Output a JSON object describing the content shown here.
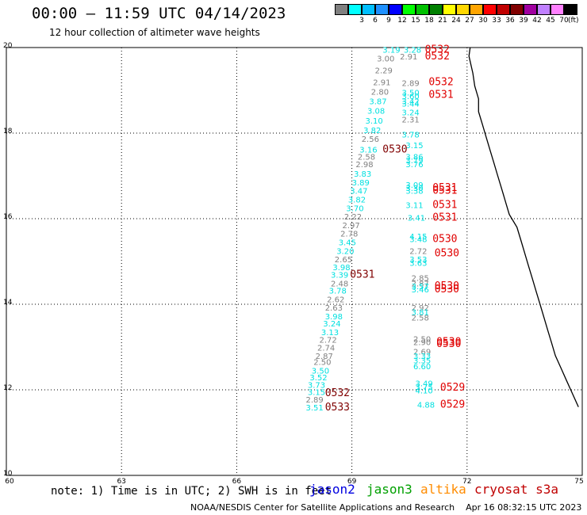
{
  "header": {
    "title": "00:00 – 11:59 UTC 04/14/2023",
    "subtitle": "12 hour collection of altimeter wave heights"
  },
  "color_scale": {
    "unit": "(ft)",
    "levels": [
      {
        "label": "",
        "color": "#808080"
      },
      {
        "label": "3",
        "color": "#00ffff"
      },
      {
        "label": "6",
        "color": "#00bfff"
      },
      {
        "label": "9",
        "color": "#1e90ff"
      },
      {
        "label": "12",
        "color": "#0000ff"
      },
      {
        "label": "15",
        "color": "#00ff00"
      },
      {
        "label": "18",
        "color": "#00c000"
      },
      {
        "label": "21",
        "color": "#008000"
      },
      {
        "label": "24",
        "color": "#ffff00"
      },
      {
        "label": "27",
        "color": "#ffd700"
      },
      {
        "label": "30",
        "color": "#ffa500"
      },
      {
        "label": "33",
        "color": "#ff0000"
      },
      {
        "label": "36",
        "color": "#c00000"
      },
      {
        "label": "39",
        "color": "#800000"
      },
      {
        "label": "42",
        "color": "#a000a0"
      },
      {
        "label": "45",
        "color": "#c080ff"
      },
      {
        "label": "70",
        "color": "#ff80ff"
      },
      {
        "label": "",
        "color": "#000000"
      }
    ]
  },
  "axes": {
    "lat_ticks": [
      "20",
      "18",
      "16",
      "14",
      "12",
      "10"
    ],
    "lon_ticks": [
      "60",
      "63",
      "66",
      "69",
      "72",
      "75"
    ]
  },
  "map_data": {
    "extent": {
      "lon": [
        60,
        75
      ],
      "lat": [
        10,
        20
      ]
    },
    "swh_readings": [
      {
        "lon": 69.8,
        "lat": 19.88,
        "text": "3.19",
        "color": "#00e0e0"
      },
      {
        "lon": 70.35,
        "lat": 19.88,
        "text": "3.28",
        "color": "#00e0e0"
      },
      {
        "lon": 69.65,
        "lat": 19.68,
        "text": "3.00",
        "color": "#808080"
      },
      {
        "lon": 70.25,
        "lat": 19.72,
        "text": "2.91",
        "color": "#808080"
      },
      {
        "lon": 69.6,
        "lat": 19.4,
        "text": "2.29",
        "color": "#808080"
      },
      {
        "lon": 69.55,
        "lat": 19.12,
        "text": "2.91",
        "color": "#808080"
      },
      {
        "lon": 70.3,
        "lat": 19.1,
        "text": "2.89",
        "color": "#808080"
      },
      {
        "lon": 69.5,
        "lat": 18.9,
        "text": "2.80",
        "color": "#808080"
      },
      {
        "lon": 70.3,
        "lat": 18.88,
        "text": "3.50",
        "color": "#00e0e0"
      },
      {
        "lon": 70.3,
        "lat": 18.8,
        "text": "3.60",
        "color": "#00e0e0"
      },
      {
        "lon": 69.45,
        "lat": 18.68,
        "text": "3.87",
        "color": "#00e0e0"
      },
      {
        "lon": 70.3,
        "lat": 18.68,
        "text": "3.42",
        "color": "#00e0e0"
      },
      {
        "lon": 70.3,
        "lat": 18.62,
        "text": "3.44",
        "color": "#00e0e0"
      },
      {
        "lon": 69.4,
        "lat": 18.45,
        "text": "3.08",
        "color": "#00e0e0"
      },
      {
        "lon": 70.3,
        "lat": 18.42,
        "text": "3.24",
        "color": "#00e0e0"
      },
      {
        "lon": 69.35,
        "lat": 18.22,
        "text": "3.10",
        "color": "#00e0e0"
      },
      {
        "lon": 70.3,
        "lat": 18.25,
        "text": "2.31",
        "color": "#808080"
      },
      {
        "lon": 69.3,
        "lat": 18.0,
        "text": "3.82",
        "color": "#00e0e0"
      },
      {
        "lon": 70.3,
        "lat": 17.9,
        "text": "3.78",
        "color": "#00e0e0"
      },
      {
        "lon": 69.25,
        "lat": 17.8,
        "text": "2.56",
        "color": "#808080"
      },
      {
        "lon": 70.4,
        "lat": 17.65,
        "text": "3.15",
        "color": "#00e0e0"
      },
      {
        "lon": 69.2,
        "lat": 17.55,
        "text": "3.16",
        "color": "#00e0e0"
      },
      {
        "lon": 69.15,
        "lat": 17.38,
        "text": "2.58",
        "color": "#808080"
      },
      {
        "lon": 70.4,
        "lat": 17.38,
        "text": "3.86",
        "color": "#00e0e0"
      },
      {
        "lon": 70.4,
        "lat": 17.3,
        "text": "3.79",
        "color": "#00e0e0"
      },
      {
        "lon": 69.1,
        "lat": 17.2,
        "text": "2.98",
        "color": "#808080"
      },
      {
        "lon": 70.4,
        "lat": 17.2,
        "text": "3.76",
        "color": "#00e0e0"
      },
      {
        "lon": 69.05,
        "lat": 16.98,
        "text": "3.83",
        "color": "#00e0e0"
      },
      {
        "lon": 69.0,
        "lat": 16.78,
        "text": "3.89",
        "color": "#00e0e0"
      },
      {
        "lon": 70.4,
        "lat": 16.72,
        "text": "3.09",
        "color": "#00e0e0"
      },
      {
        "lon": 70.4,
        "lat": 16.65,
        "text": "3.30",
        "color": "#00e0e0"
      },
      {
        "lon": 70.4,
        "lat": 16.58,
        "text": "3.38",
        "color": "#00e0e0"
      },
      {
        "lon": 68.95,
        "lat": 16.58,
        "text": "3.47",
        "color": "#00e0e0"
      },
      {
        "lon": 68.9,
        "lat": 16.38,
        "text": "3.82",
        "color": "#00e0e0"
      },
      {
        "lon": 70.4,
        "lat": 16.25,
        "text": "3.11",
        "color": "#00e0e0"
      },
      {
        "lon": 68.85,
        "lat": 16.18,
        "text": "3.70",
        "color": "#00e0e0"
      },
      {
        "lon": 68.8,
        "lat": 15.98,
        "text": "2.22",
        "color": "#808080"
      },
      {
        "lon": 70.45,
        "lat": 15.95,
        "text": "3.41",
        "color": "#00e0e0"
      },
      {
        "lon": 68.75,
        "lat": 15.78,
        "text": "2.97",
        "color": "#808080"
      },
      {
        "lon": 68.7,
        "lat": 15.58,
        "text": "2.78",
        "color": "#808080"
      },
      {
        "lon": 70.5,
        "lat": 15.52,
        "text": "4.15",
        "color": "#00e0e0"
      },
      {
        "lon": 70.5,
        "lat": 15.45,
        "text": "3.48",
        "color": "#00e0e0"
      },
      {
        "lon": 68.65,
        "lat": 15.38,
        "text": "3.45",
        "color": "#00e0e0"
      },
      {
        "lon": 68.6,
        "lat": 15.18,
        "text": "3.20",
        "color": "#00e0e0"
      },
      {
        "lon": 70.5,
        "lat": 15.18,
        "text": "2.72",
        "color": "#808080"
      },
      {
        "lon": 68.55,
        "lat": 14.98,
        "text": "2.65",
        "color": "#808080"
      },
      {
        "lon": 70.5,
        "lat": 14.98,
        "text": "3.53",
        "color": "#00e0e0"
      },
      {
        "lon": 70.5,
        "lat": 14.9,
        "text": "3.63",
        "color": "#00e0e0"
      },
      {
        "lon": 68.5,
        "lat": 14.8,
        "text": "3.98",
        "color": "#00e0e0"
      },
      {
        "lon": 68.45,
        "lat": 14.62,
        "text": "3.39",
        "color": "#00e0e0"
      },
      {
        "lon": 70.55,
        "lat": 14.55,
        "text": "2.85",
        "color": "#808080"
      },
      {
        "lon": 68.45,
        "lat": 14.42,
        "text": "2.48",
        "color": "#808080"
      },
      {
        "lon": 70.55,
        "lat": 14.42,
        "text": "2.87",
        "color": "#808080"
      },
      {
        "lon": 70.55,
        "lat": 14.35,
        "text": "3.57",
        "color": "#00e0e0"
      },
      {
        "lon": 70.55,
        "lat": 14.28,
        "text": "3.46",
        "color": "#00e0e0"
      },
      {
        "lon": 68.4,
        "lat": 14.25,
        "text": "3.78",
        "color": "#00e0e0"
      },
      {
        "lon": 68.35,
        "lat": 14.05,
        "text": "2.62",
        "color": "#808080"
      },
      {
        "lon": 68.3,
        "lat": 13.85,
        "text": "2.63",
        "color": "#808080"
      },
      {
        "lon": 70.55,
        "lat": 13.85,
        "text": "2.92",
        "color": "#808080"
      },
      {
        "lon": 70.55,
        "lat": 13.75,
        "text": "3.81",
        "color": "#00e0e0"
      },
      {
        "lon": 68.3,
        "lat": 13.65,
        "text": "3.98",
        "color": "#00e0e0"
      },
      {
        "lon": 70.55,
        "lat": 13.62,
        "text": "2.58",
        "color": "#808080"
      },
      {
        "lon": 68.25,
        "lat": 13.48,
        "text": "3.24",
        "color": "#00e0e0"
      },
      {
        "lon": 68.2,
        "lat": 13.28,
        "text": "3.13",
        "color": "#00e0e0"
      },
      {
        "lon": 70.6,
        "lat": 13.12,
        "text": "2.50",
        "color": "#808080"
      },
      {
        "lon": 70.6,
        "lat": 13.05,
        "text": "2.90",
        "color": "#808080"
      },
      {
        "lon": 68.15,
        "lat": 13.1,
        "text": "2.72",
        "color": "#808080"
      },
      {
        "lon": 68.1,
        "lat": 12.92,
        "text": "2.74",
        "color": "#808080"
      },
      {
        "lon": 70.6,
        "lat": 12.82,
        "text": "2.69",
        "color": "#808080"
      },
      {
        "lon": 68.05,
        "lat": 12.72,
        "text": "2.87",
        "color": "#808080"
      },
      {
        "lon": 70.6,
        "lat": 12.72,
        "text": "3.33",
        "color": "#00e0e0"
      },
      {
        "lon": 70.6,
        "lat": 12.62,
        "text": "3.35",
        "color": "#00e0e0"
      },
      {
        "lon": 68.0,
        "lat": 12.58,
        "text": "2.50",
        "color": "#808080"
      },
      {
        "lon": 70.6,
        "lat": 12.48,
        "text": "6.60",
        "color": "#00e0e0"
      },
      {
        "lon": 67.95,
        "lat": 12.38,
        "text": "3.50",
        "color": "#00e0e0"
      },
      {
        "lon": 67.9,
        "lat": 12.22,
        "text": "3.52",
        "color": "#00e0e0"
      },
      {
        "lon": 70.65,
        "lat": 12.08,
        "text": "3.49",
        "color": "#00e0e0"
      },
      {
        "lon": 70.65,
        "lat": 12.0,
        "text": "3.75",
        "color": "#00e0e0"
      },
      {
        "lon": 67.85,
        "lat": 12.05,
        "text": "3.73",
        "color": "#00e0e0"
      },
      {
        "lon": 70.65,
        "lat": 11.92,
        "text": "4.10",
        "color": "#00e0e0"
      },
      {
        "lon": 67.85,
        "lat": 11.88,
        "text": "3.15",
        "color": "#00e0e0"
      },
      {
        "lon": 67.8,
        "lat": 11.7,
        "text": "2.89",
        "color": "#808080"
      },
      {
        "lon": 70.7,
        "lat": 11.58,
        "text": "4.88",
        "color": "#00e0e0"
      },
      {
        "lon": 67.8,
        "lat": 11.52,
        "text": "3.51",
        "color": "#00e0e0"
      }
    ],
    "pass_times": [
      {
        "lon": 70.9,
        "lat": 19.88,
        "text": "0532",
        "color": "#e00000"
      },
      {
        "lon": 70.9,
        "lat": 19.72,
        "text": "0532",
        "color": "#e00000"
      },
      {
        "lon": 71.0,
        "lat": 19.12,
        "text": "0532",
        "color": "#e00000"
      },
      {
        "lon": 71.0,
        "lat": 18.82,
        "text": "0531",
        "color": "#e00000"
      },
      {
        "lon": 69.8,
        "lat": 17.55,
        "text": "0530",
        "color": "#800000"
      },
      {
        "lon": 71.1,
        "lat": 16.65,
        "text": "0531",
        "color": "#e00000"
      },
      {
        "lon": 71.1,
        "lat": 16.58,
        "text": "0531",
        "color": "#e00000"
      },
      {
        "lon": 71.1,
        "lat": 16.25,
        "text": "0531",
        "color": "#e00000"
      },
      {
        "lon": 71.1,
        "lat": 15.95,
        "text": "0531",
        "color": "#e00000"
      },
      {
        "lon": 71.1,
        "lat": 15.45,
        "text": "0530",
        "color": "#e00000"
      },
      {
        "lon": 71.15,
        "lat": 15.12,
        "text": "0530",
        "color": "#e00000"
      },
      {
        "lon": 68.95,
        "lat": 14.62,
        "text": "0531",
        "color": "#800000"
      },
      {
        "lon": 71.15,
        "lat": 14.35,
        "text": "0530",
        "color": "#e00000"
      },
      {
        "lon": 71.15,
        "lat": 14.28,
        "text": "0530",
        "color": "#e00000"
      },
      {
        "lon": 71.2,
        "lat": 13.05,
        "text": "0530",
        "color": "#e00000"
      },
      {
        "lon": 71.2,
        "lat": 13.0,
        "text": "0530",
        "color": "#e00000"
      },
      {
        "lon": 71.3,
        "lat": 11.98,
        "text": "0529",
        "color": "#e00000"
      },
      {
        "lon": 68.3,
        "lat": 11.85,
        "text": "0532",
        "color": "#800000"
      },
      {
        "lon": 71.3,
        "lat": 11.58,
        "text": "0529",
        "color": "#e00000"
      },
      {
        "lon": 68.3,
        "lat": 11.52,
        "text": "0533",
        "color": "#800000"
      }
    ],
    "coastline": [
      [
        72.08,
        20.0
      ],
      [
        72.05,
        19.8
      ],
      [
        72.15,
        19.4
      ],
      [
        72.2,
        19.1
      ],
      [
        72.3,
        18.8
      ],
      [
        72.3,
        18.5
      ],
      [
        72.4,
        18.2
      ],
      [
        72.5,
        17.9
      ],
      [
        72.6,
        17.6
      ],
      [
        72.7,
        17.3
      ],
      [
        72.8,
        17.0
      ],
      [
        72.9,
        16.7
      ],
      [
        73.0,
        16.4
      ],
      [
        73.1,
        16.1
      ],
      [
        73.3,
        15.8
      ],
      [
        73.4,
        15.5
      ],
      [
        73.5,
        15.2
      ],
      [
        73.6,
        14.9
      ],
      [
        73.7,
        14.6
      ],
      [
        73.8,
        14.3
      ],
      [
        73.9,
        14.0
      ],
      [
        74.0,
        13.7
      ],
      [
        74.1,
        13.4
      ],
      [
        74.2,
        13.1
      ],
      [
        74.3,
        12.8
      ],
      [
        74.45,
        12.5
      ],
      [
        74.6,
        12.2
      ],
      [
        74.75,
        11.9
      ],
      [
        74.9,
        11.6
      ]
    ]
  },
  "legend": {
    "note": "note: 1) Time is in UTC; 2) SWH is in feet",
    "satellites": [
      {
        "name": "jason2",
        "color": "#0000e0"
      },
      {
        "name": "jason3",
        "color": "#00a000"
      },
      {
        "name": "altika",
        "color": "#ff8c00"
      },
      {
        "name": "cryosat s3a",
        "color": "#c00000"
      }
    ]
  },
  "footer": {
    "credit": "NOAA/NESDIS Center for Satellite Applications and Research",
    "timestamp": "Apr 16 08:32:15 UTC 2023"
  }
}
